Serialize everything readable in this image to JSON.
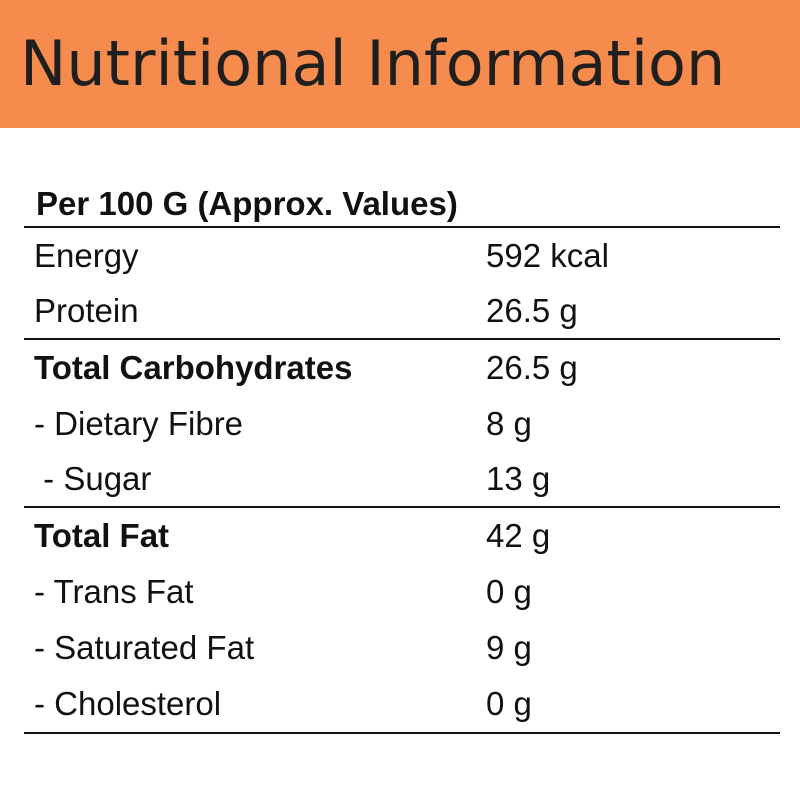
{
  "header": {
    "title": "Nutritional Information",
    "background_color": "#f58b4c"
  },
  "table": {
    "heading": "Per 100 G (Approx. Values)",
    "rows": [
      {
        "label": "Energy",
        "value": "592 kcal",
        "bold": false
      },
      {
        "label": "Protein",
        "value": "26.5 g",
        "bold": false
      },
      {
        "label": "Total Carbohydrates",
        "value": "26.5 g",
        "bold": true
      },
      {
        "label": "- Dietary Fibre",
        "value": "8 g",
        "bold": false
      },
      {
        "label": " - Sugar",
        "value": "13 g",
        "bold": false
      },
      {
        "label": "Total Fat",
        "value": "42 g",
        "bold": true
      },
      {
        "label": "- Trans Fat",
        "value": "0 g",
        "bold": false
      },
      {
        "label": "- Saturated Fat",
        "value": "9 g",
        "bold": false
      },
      {
        "label": "- Cholesterol",
        "value": "0 g",
        "bold": false
      }
    ]
  }
}
